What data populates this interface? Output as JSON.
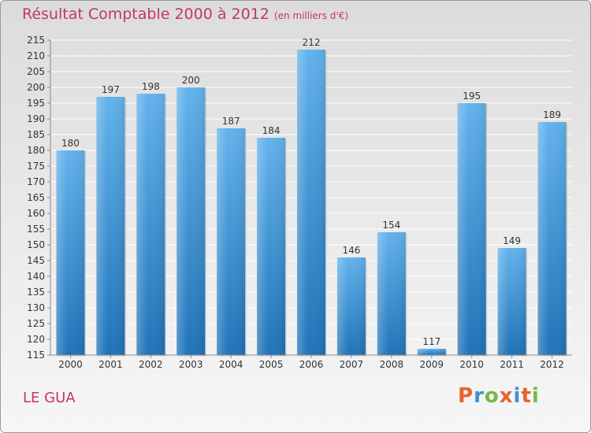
{
  "title": "Résultat Comptable 2000 à 2012",
  "unit_note": "(en milliers d'€)",
  "commune": "LE GUA",
  "brand": {
    "letters": [
      "P",
      "r",
      "o",
      "x",
      "i",
      "t",
      "i"
    ],
    "colors": [
      "#e8622a",
      "#3f8fd2",
      "#7ab547",
      "#e8622a",
      "#3f8fd2",
      "#e8622a",
      "#7ab547"
    ]
  },
  "colors": {
    "accent": "#c5336d",
    "bar_top": "#62b2ec",
    "bar_bottom": "#1f73b8"
  },
  "chart_data": {
    "type": "bar",
    "title": "Résultat Comptable 2000 à 2012",
    "ylabel": "en milliers d'€",
    "xlabel": "",
    "categories": [
      "2000",
      "2001",
      "2002",
      "2003",
      "2004",
      "2005",
      "2006",
      "2007",
      "2008",
      "2009",
      "2010",
      "2011",
      "2012"
    ],
    "values": [
      180,
      197,
      198,
      200,
      187,
      184,
      212,
      146,
      154,
      117,
      195,
      149,
      189
    ],
    "ylim": [
      115,
      215
    ],
    "ytick_step": 5,
    "grid": true
  }
}
